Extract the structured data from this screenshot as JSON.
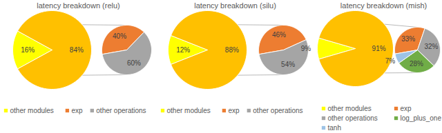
{
  "chart_data": [
    {
      "type": "pie",
      "title": "latency breakdown (relu)",
      "categories": [
        "other modules",
        null
      ],
      "values": [
        16,
        84
      ],
      "value_labels": [
        "16%",
        "84%"
      ],
      "colors": [
        "#FFFF00",
        "#FFC000"
      ],
      "data_labels": true,
      "legend": "bottom",
      "breakdown": {
        "type": "pie",
        "categories": [
          "exp",
          "other operations"
        ],
        "values": [
          40,
          60
        ],
        "value_labels": [
          "40%",
          "60%"
        ],
        "colors": [
          "#ED7D31",
          "#A5A5A5"
        ],
        "data_labels": true
      }
    },
    {
      "type": "pie",
      "title": "latency breakdown (silu)",
      "categories": [
        "other modules",
        null
      ],
      "values": [
        12,
        88
      ],
      "value_labels": [
        "12%",
        "88%"
      ],
      "colors": [
        "#FFFF00",
        "#FFC000"
      ],
      "data_labels": true,
      "legend": "bottom",
      "breakdown": {
        "type": "pie",
        "categories": [
          "exp",
          "other operations"
        ],
        "values": [
          46,
          54
        ],
        "value_labels": [
          "46%",
          "54%"
        ],
        "colors": [
          "#ED7D31",
          "#A5A5A5"
        ],
        "data_labels": true
      }
    },
    {
      "type": "pie",
      "title": "latency breakdown (mish)",
      "categories": [
        "other modules",
        null
      ],
      "values": [
        9,
        91
      ],
      "value_labels": [
        "9%",
        "91%"
      ],
      "colors": [
        "#FFFF00",
        "#FFC000"
      ],
      "data_labels": true,
      "legend": "bottom",
      "breakdown": {
        "type": "pie",
        "categories": [
          "exp",
          "other operations",
          "log_plus_one",
          "tanh"
        ],
        "values": [
          33,
          32,
          28,
          7
        ],
        "value_labels": [
          "33%",
          "32%",
          "28%",
          "7%"
        ],
        "colors": [
          "#ED7D31",
          "#A5A5A5",
          "#70AD47",
          "#9DC3E6"
        ],
        "data_labels": true
      }
    }
  ]
}
